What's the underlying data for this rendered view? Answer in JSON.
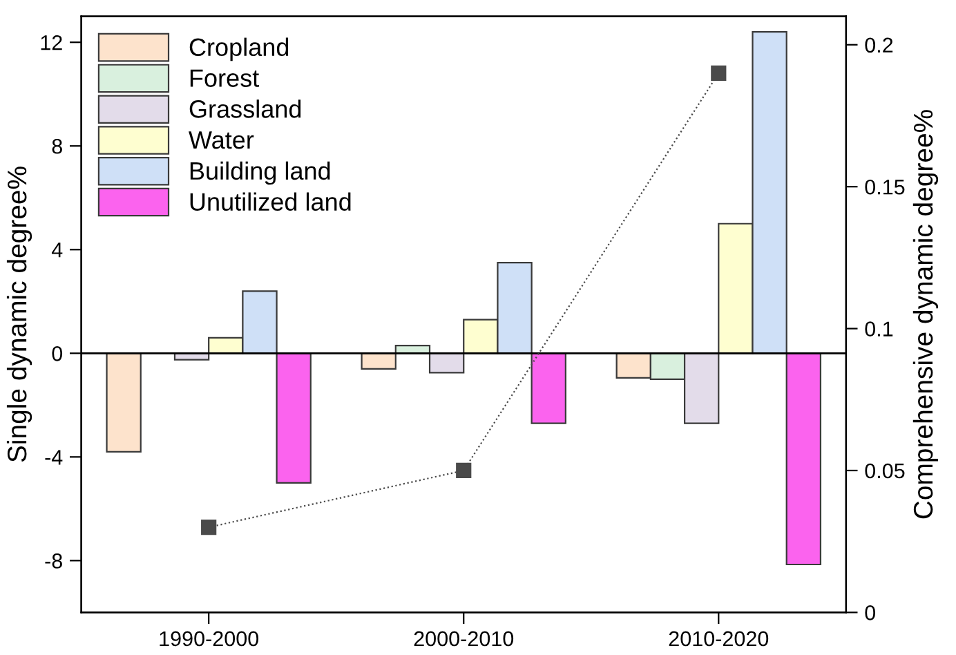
{
  "chart_data": {
    "type": "bar",
    "categories": [
      "1990-2000",
      "2000-2010",
      "2010-2020"
    ],
    "ylabel": "Single dynamic degree%",
    "y2label": "Comprehensive dynamic degree%",
    "ylim": [
      -10,
      13
    ],
    "yticks": [
      -8,
      -4,
      0,
      4,
      8,
      12
    ],
    "y2lim": [
      0,
      0.21
    ],
    "y2ticks": [
      0,
      0.05,
      0.1,
      0.15,
      0.2
    ],
    "series": [
      {
        "name": "Cropland",
        "color": "#fde3cc",
        "values": [
          -3.8,
          -0.6,
          -0.95
        ]
      },
      {
        "name": "Forest",
        "color": "#d9f0de",
        "values": [
          null,
          0.3,
          -1.0
        ]
      },
      {
        "name": "Grassland",
        "color": "#e3dcea",
        "values": [
          -0.25,
          -0.75,
          -2.7
        ]
      },
      {
        "name": "Water",
        "color": "#fefed0",
        "values": [
          0.6,
          1.3,
          5.0
        ]
      },
      {
        "name": "Building land",
        "color": "#cfe0f7",
        "values": [
          2.4,
          3.5,
          12.4
        ]
      },
      {
        "name": "Unutilized land",
        "color": "#fb63ee",
        "values": [
          -5.0,
          -2.7,
          -8.15
        ]
      },
      {
        "type": "line",
        "axis": "y2",
        "color": "#4a4a4a",
        "values": [
          0.03,
          0.05,
          0.19
        ],
        "marker": "square",
        "line_style": "dotted"
      }
    ],
    "ref_lines": [
      {
        "axis": "y",
        "value": 0,
        "color": "#000000",
        "line_style": "solid"
      }
    ],
    "legend": "top left",
    "grid": false
  }
}
